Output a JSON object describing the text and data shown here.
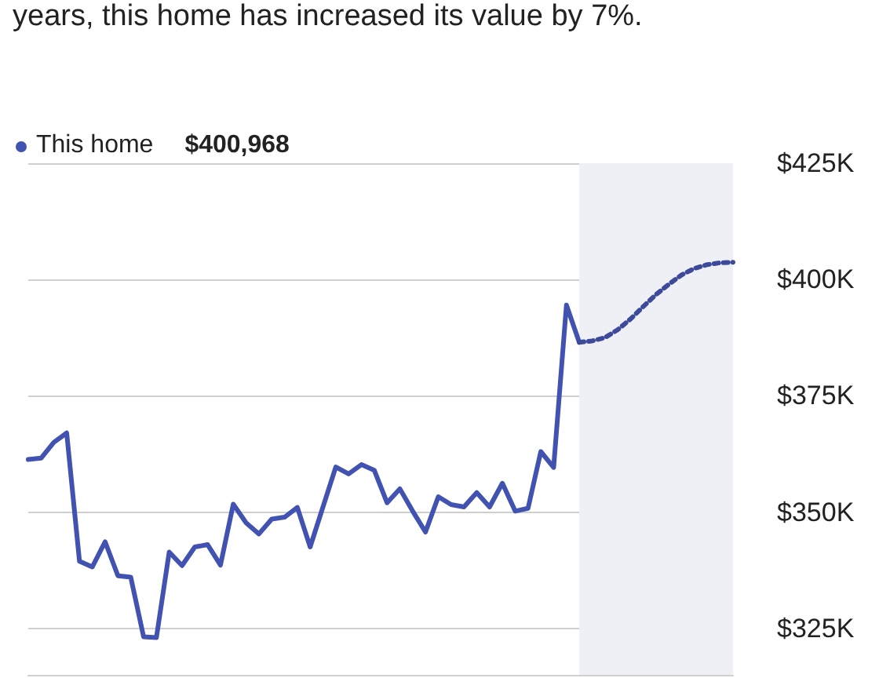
{
  "chart_data": {
    "type": "line",
    "title": "years, this home has increased its value by 7%.",
    "annotations": [
      "$400,968"
    ],
    "categories": [
      null,
      null,
      null,
      null,
      null,
      null,
      null,
      null,
      null,
      null,
      null,
      null,
      null,
      null,
      null,
      null,
      null,
      null,
      null,
      null,
      null,
      null,
      null,
      null,
      null,
      null,
      null,
      null,
      null,
      null,
      null,
      null,
      null,
      null,
      null,
      null,
      null,
      null,
      null,
      null,
      null,
      null,
      null,
      null,
      null,
      null,
      null,
      null,
      null,
      null,
      null,
      null,
      null,
      null,
      null,
      null
    ],
    "series": [
      {
        "name": "This home",
        "color": "#4152b0",
        "values": [
          361300,
          361600,
          365000,
          367000,
          339400,
          338200,
          343600,
          336300,
          336000,
          323200,
          323000,
          341400,
          338500,
          342500,
          343000,
          338600,
          351700,
          347700,
          345300,
          348500,
          348900,
          351000,
          342500,
          351100,
          359700,
          358200,
          360200,
          359000,
          352000,
          355000,
          350200,
          345700,
          353300,
          351600,
          351100,
          354200,
          351100,
          356200,
          350200,
          350800,
          363000,
          359600,
          394500,
          386500,
          null,
          null,
          null,
          null,
          null,
          null,
          null,
          null,
          null,
          null,
          null,
          null
        ]
      },
      {
        "type": "line",
        "line_style": "dotted",
        "color": "#3d4a9a",
        "values": [
          null,
          null,
          null,
          null,
          null,
          null,
          null,
          null,
          null,
          null,
          null,
          null,
          null,
          null,
          null,
          null,
          null,
          null,
          null,
          null,
          null,
          null,
          null,
          null,
          null,
          null,
          null,
          null,
          null,
          null,
          null,
          null,
          null,
          null,
          null,
          null,
          null,
          null,
          null,
          null,
          null,
          null,
          null,
          386500,
          386800,
          387500,
          389200,
          391500,
          394200,
          396800,
          399000,
          401000,
          402400,
          403200,
          403600,
          403700
        ]
      }
    ],
    "ylim": [
      315000,
      425000
    ],
    "yticks": [
      {
        "value": 325000,
        "label": "$325K"
      },
      {
        "value": 350000,
        "label": "$350K"
      },
      {
        "value": 375000,
        "label": "$375K"
      },
      {
        "value": 400000,
        "label": "$400K"
      },
      {
        "value": 425000,
        "label": "$425K"
      }
    ],
    "grid": "y",
    "legend": "top left",
    "tick_labels": "y"
  }
}
